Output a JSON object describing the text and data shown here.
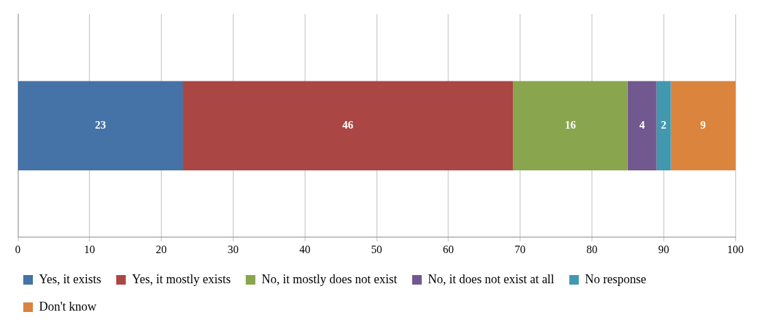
{
  "chart_data": {
    "type": "bar",
    "orientation": "horizontal",
    "stacked": true,
    "categories": [
      null
    ],
    "series": [
      {
        "name": "Yes, it exists",
        "color": "#4572a7",
        "values": [
          23
        ]
      },
      {
        "name": "Yes, it mostly exists",
        "color": "#aa4643",
        "values": [
          46
        ]
      },
      {
        "name": "No, it mostly does not exist",
        "color": "#89a54e",
        "values": [
          16
        ]
      },
      {
        "name": "No, it does not exist at all",
        "color": "#71588f",
        "values": [
          4
        ]
      },
      {
        "name": "No response",
        "color": "#4198af",
        "values": [
          2
        ]
      },
      {
        "name": "Don't know",
        "color": "#db843d",
        "values": [
          9
        ]
      }
    ],
    "xlim": [
      0,
      100
    ],
    "xticks": [
      0,
      10,
      20,
      30,
      40,
      50,
      60,
      70,
      80,
      90,
      100
    ],
    "grid": "x",
    "legend": "bottom",
    "data_labels": true
  }
}
